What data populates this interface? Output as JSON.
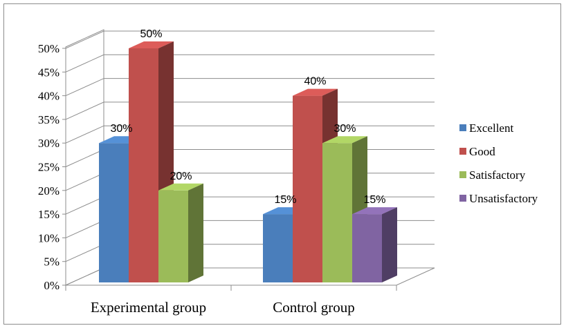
{
  "chart_data": {
    "type": "bar",
    "title": "",
    "xlabel": "",
    "ylabel": "",
    "categories": [
      "Experimental group",
      "Control group"
    ],
    "series": [
      {
        "name": "Excellent",
        "values": [
          30,
          15
        ],
        "labels": [
          "30%",
          "15%"
        ],
        "color": "#4a7ebb"
      },
      {
        "name": "Good",
        "values": [
          50,
          40
        ],
        "labels": [
          "50%",
          "40%"
        ],
        "color": "#c0504d"
      },
      {
        "name": "Satisfactory",
        "values": [
          20,
          30
        ],
        "labels": [
          "20%",
          "30%"
        ],
        "color": "#9bbb59"
      },
      {
        "name": "Unsatisfactory",
        "values": [
          null,
          15
        ],
        "labels": [
          "",
          "15%"
        ],
        "color": "#8064a2"
      }
    ],
    "y_ticks": [
      "0%",
      "5%",
      "10%",
      "15%",
      "20%",
      "25%",
      "30%",
      "35%",
      "40%",
      "45%",
      "50%"
    ],
    "ylim": [
      0,
      50
    ],
    "grid": true,
    "legend": "right",
    "style": "3d-clustered-column"
  }
}
